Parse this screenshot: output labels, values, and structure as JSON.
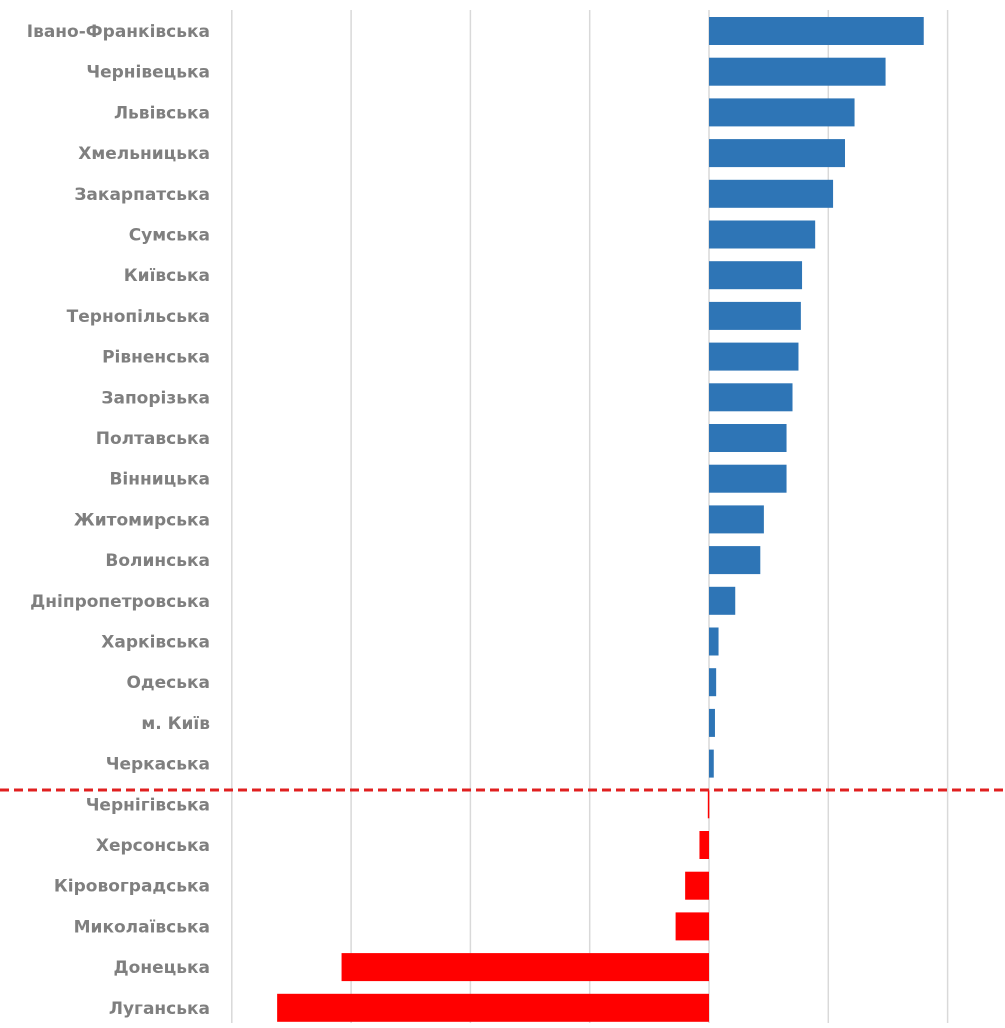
{
  "chart_data": {
    "type": "bar",
    "orientation": "horizontal",
    "title": "",
    "xlabel": "",
    "ylabel": "",
    "grid": true,
    "tick_labels_shown": false,
    "xlim": [
      -18,
      10
    ],
    "categories": [
      "Івано-Франківська",
      "Чернівецька",
      "Львівська",
      "Хмельницька",
      "Закарпатська",
      "Сумська",
      "Київська",
      "Тернопільська",
      "Рівненська",
      "Запорізька",
      "Полтавська",
      "Вінницька",
      "Житомирська",
      "Волинська",
      "Дніпропетровська",
      "Харківська",
      "Одеська",
      "м. Київ",
      "Черкаська",
      "Чернігівська",
      "Херсонська",
      "Кіровоградська",
      "Миколаївська",
      "Донецька",
      "Луганська"
    ],
    "values": [
      9.0,
      7.4,
      6.1,
      5.7,
      5.2,
      4.45,
      3.9,
      3.85,
      3.75,
      3.5,
      3.25,
      3.25,
      2.3,
      2.15,
      1.1,
      0.4,
      0.3,
      0.25,
      0.2,
      -0.05,
      -0.4,
      -1.0,
      -1.4,
      -15.4,
      -18.1
    ],
    "colors": {
      "positive": "#2e75b6",
      "negative": "#ff0000",
      "gridline": "#d9d9d9",
      "label": "#7f7f7f",
      "zero_divider": "#e02020"
    },
    "annotations": [
      {
        "type": "dashed-divider",
        "between": [
          "Черкаська",
          "Чернігівська"
        ],
        "color": "#e02020"
      }
    ]
  }
}
